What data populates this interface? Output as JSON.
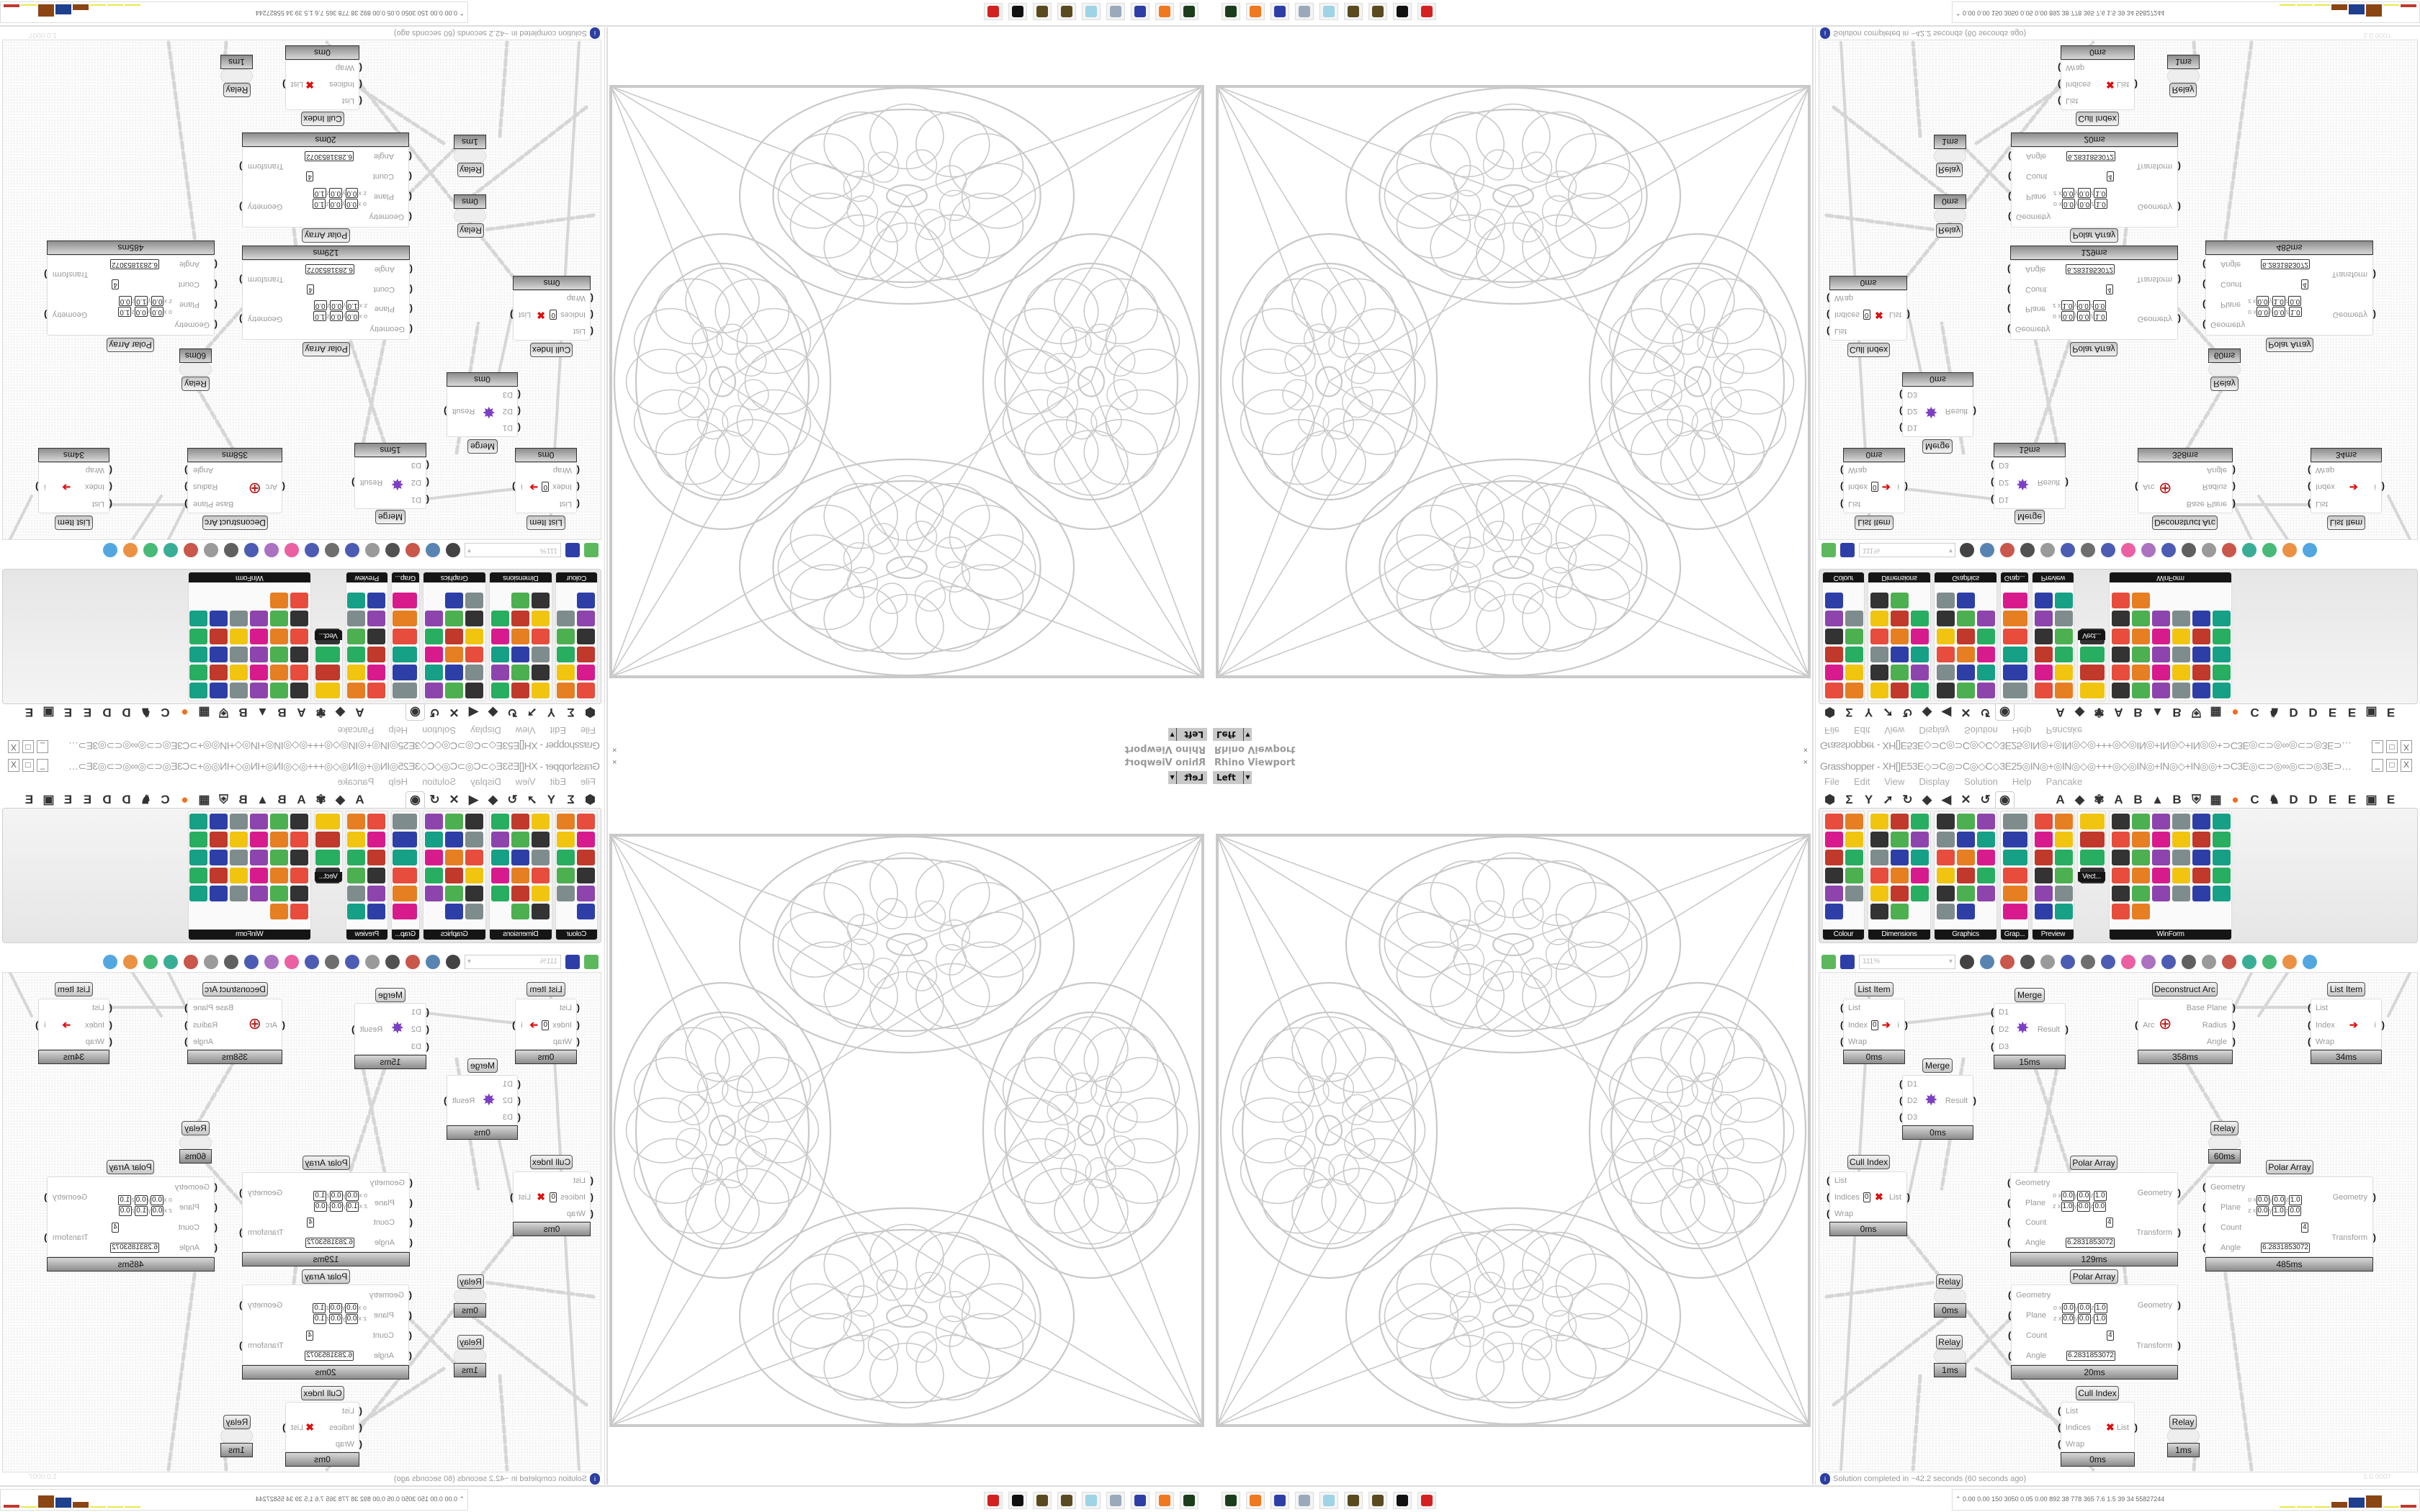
{
  "viewport": {
    "title": "Rhino Viewport",
    "view": "Left",
    "close": "×"
  },
  "grasshopper": {
    "title": "Grasshopper - XH[]E53E◇⊃C◎⊃C◎◇C◇3E25◎IN◎+◎IN◎◇◎+++◎◇◎IN◎+IN◎◇+IN◎◎+⊃C3E◎⊂⊃◎∞◎⊂⊃◎3E⊃C+◎◎IN◎+◇◎3E3E◎+25+◎3E3E◎◇+◎⊃C3E◎+⊃C",
    "window_buttons": [
      "_",
      "□",
      "X"
    ],
    "menu": [
      "File",
      "Edit",
      "View",
      "Display",
      "Solution",
      "Help",
      "Pancake"
    ],
    "tabs": [
      "⬢",
      "Σ",
      "Y",
      "➚",
      "↻",
      "◆",
      "◀",
      "✕",
      "↺",
      "◉",
      "A",
      "◆",
      "✾",
      "A",
      "B",
      "▲",
      "B",
      "⛨",
      "▦",
      "●",
      "C",
      "♞",
      "D",
      "D",
      "E",
      "E",
      "▣",
      "E"
    ],
    "active_tab": 9,
    "panel_groups": [
      {
        "label": "Colour",
        "icons": [
          "colour-wheel",
          "gradient",
          "rgb-cube",
          "swatch-triangle",
          "colour-cube",
          "hsl",
          "sphere-red",
          "hsv",
          "sphere-dark",
          "prism",
          "gradient-rect"
        ]
      },
      {
        "label": "Dimensions",
        "icons": [
          "tag-delete",
          "linear-dim",
          "angle-dim",
          "tag",
          "pen",
          "box-dim",
          "magenta-swatch",
          "ordinate-dim",
          "baseline-dim",
          "grid",
          "triangle-dim",
          "angular-dim",
          "arc-dim",
          "point-dim",
          "frame-dim",
          "line-dim",
          "warning-dim"
        ]
      },
      {
        "label": "Graphics",
        "icons": [
          "circle",
          "t-circle",
          "eye-circle",
          "dashed-circle",
          "t-black",
          "round-square",
          "blur-dot",
          "list-circle",
          "gear",
          "ring",
          "link",
          "flask",
          "gradient-circle",
          "dotted-circle",
          "save-gear",
          "dark-sphere",
          "mountain"
        ]
      },
      {
        "label": "Grap...",
        "icons": [
          "bar-graph",
          "colour-legend",
          "donut-chart",
          "line-graph",
          "image-stack",
          "line-chart"
        ]
      },
      {
        "label": "Preview",
        "icons": [
          "custom-preview",
          "camera",
          "material-sphere",
          "landscape",
          "blobs",
          "heart-mesh",
          "red-blobs",
          "heart-green",
          "gradient-box",
          "hearts",
          "sl-text",
          "tree-image"
        ]
      },
      {
        "label": "Vect...",
        "icons": [
          "number-sort",
          "path",
          "arrows-red",
          "arrows-green"
        ]
      },
      {
        "label": "WinForm",
        "icons": [
          "text-a",
          "list-view",
          "text-lines",
          "label",
          "chart",
          "grid-dark",
          "hatch",
          "slider",
          "range",
          "green-grid",
          "pie-yellow",
          "frame",
          "checkbox",
          "doc-text",
          "tree-pic",
          "pie-chart",
          "user-chart",
          "window",
          "numeric",
          "gear-box",
          "split",
          "text-plus",
          "ok-button",
          "numeric-2",
          "vertical-bar",
          "list-box",
          "panel-green",
          "calendar",
          "v-slider",
          "toggle",
          "bar-chart",
          "door-arrow"
        ]
      }
    ],
    "zoom": "111%",
    "nodes": [
      {
        "type": "list-item",
        "title": "List Item",
        "inputs": [
          "List",
          "Index",
          "Wrap"
        ],
        "outputs": [
          "i"
        ],
        "value": "0",
        "time": "0ms"
      },
      {
        "type": "merge",
        "title": "Merge",
        "inputs": [
          "D1",
          "D2",
          "D3"
        ],
        "outputs": [
          "Result"
        ],
        "time": "15ms"
      },
      {
        "type": "deconstruct-arc",
        "title": "Deconstruct Arc",
        "inputs": [
          "Arc"
        ],
        "outputs": [
          "Base Plane",
          "Radius",
          "Angle"
        ],
        "time": "358ms"
      },
      {
        "type": "list-item",
        "title": "List Item",
        "inputs": [
          "List",
          "Index",
          "Wrap"
        ],
        "outputs": [
          "i"
        ],
        "time": "34ms"
      },
      {
        "type": "merge",
        "title": "Merge",
        "inputs": [
          "D1",
          "D2",
          "D3"
        ],
        "outputs": [
          "Result"
        ],
        "time": "0ms"
      },
      {
        "type": "relay",
        "title": "Relay",
        "time": "60ms"
      },
      {
        "type": "cull-index",
        "title": "Cull Index",
        "inputs": [
          "List",
          "Indices",
          "Wrap"
        ],
        "outputs": [
          "List"
        ],
        "value": "0",
        "time": "0ms"
      },
      {
        "type": "polar-array",
        "title": "Polar Array",
        "inputs": [
          "Geometry",
          "Plane",
          "Count",
          "Angle"
        ],
        "outputs": [
          "Geometry",
          "Transform"
        ],
        "origin": [
          "0.0",
          "0.0",
          "1.0"
        ],
        "zaxis": [
          "1.0",
          "0.0",
          "0.0"
        ],
        "count": "4",
        "angle": "6.2831853072",
        "time": "129ms"
      },
      {
        "type": "polar-array",
        "title": "Polar Array",
        "inputs": [
          "Geometry",
          "Plane",
          "Count",
          "Angle"
        ],
        "outputs": [
          "Geometry",
          "Transform"
        ],
        "origin": [
          "0.0",
          "0.0",
          "1.0"
        ],
        "zaxis": [
          "0.0",
          "1.0",
          "0.0"
        ],
        "count": "4",
        "angle": "6.2831853072",
        "time": "485ms"
      },
      {
        "type": "relay",
        "title": "Relay",
        "time": "0ms"
      },
      {
        "type": "relay",
        "title": "Relay",
        "time": "1ms"
      },
      {
        "type": "polar-array",
        "title": "Polar Array",
        "inputs": [
          "Geometry",
          "Plane",
          "Count",
          "Angle"
        ],
        "outputs": [
          "Geometry",
          "Transform"
        ],
        "origin": [
          "0.0",
          "0.0",
          "1.0"
        ],
        "zaxis": [
          "0.0",
          "0.0",
          "1.0"
        ],
        "count": "4",
        "angle": "6.2831853072",
        "time": "20ms"
      },
      {
        "type": "cull-index",
        "title": "Cull Index",
        "inputs": [
          "List",
          "Indices",
          "Wrap"
        ],
        "outputs": [
          "List"
        ],
        "time": "0ms"
      },
      {
        "type": "relay",
        "title": "Relay",
        "time": "1ms"
      }
    ],
    "status": "Solution completed in ~42.2 seconds (60 seconds ago)",
    "version": "1.0.0007"
  },
  "taskbar": {
    "apps": [
      "terminal",
      "firefox",
      "save-64",
      "scroll",
      "notepad",
      "rhino-egg",
      "rhino-egg",
      "rhino",
      "grasshopper-red"
    ],
    "tray_values": "0.00 0.00 150 3050 0.05 0.00 892 38 778 365 7.6 1.5 39 34 55827244",
    "tray_bars": [
      0.05,
      0.05,
      0.05,
      0.45,
      0.8,
      0.95,
      0.05,
      0.2
    ]
  }
}
